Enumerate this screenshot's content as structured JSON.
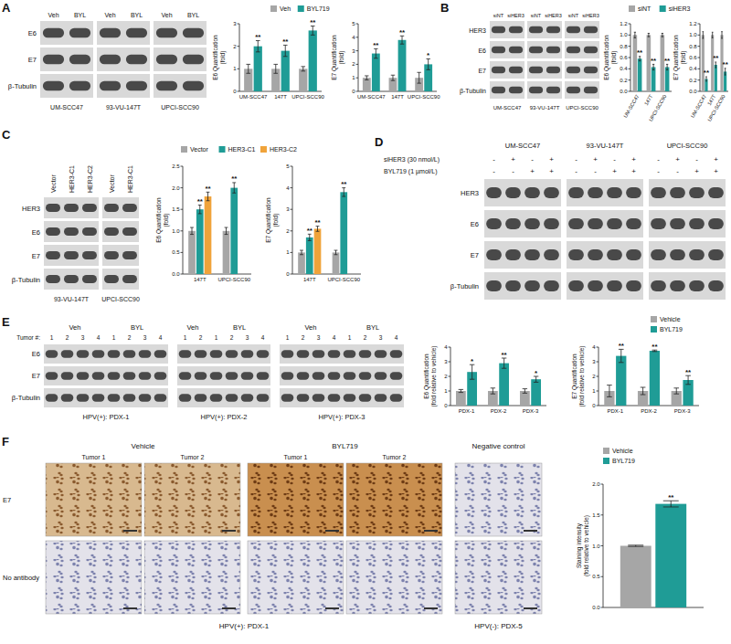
{
  "chart_data": [
    {
      "type": "bar",
      "ylabel": "E6 Quantification (fold)",
      "categories": [
        "UM-SCC47",
        "147T",
        "UPCI-SCC90"
      ],
      "series": [
        {
          "name": "Veh",
          "color": "#a6a6a6",
          "values": [
            1,
            1,
            1
          ],
          "errors": [
            0.2,
            0.2,
            0.1
          ]
        },
        {
          "name": "BYL719",
          "color": "#1f9c96",
          "values": [
            2.0,
            1.8,
            2.7
          ],
          "errors": [
            0.25,
            0.25,
            0.2
          ],
          "significance": [
            "**",
            "**",
            "**"
          ]
        }
      ],
      "ylim": [
        0,
        3
      ],
      "yticks": [
        0,
        1,
        2,
        3
      ],
      "legend": "top"
    },
    {
      "type": "bar",
      "ylabel": "E7 Quantification (fold)",
      "categories": [
        "UM-SCC47",
        "147T",
        "UPCI-SCC90"
      ],
      "series": [
        {
          "color": "#a6a6a6",
          "values": [
            1,
            1,
            1
          ],
          "errors": [
            0.15,
            0.2,
            0.4
          ]
        },
        {
          "color": "#1f9c96",
          "values": [
            2.8,
            3.8,
            2.0
          ],
          "errors": [
            0.35,
            0.3,
            0.4
          ],
          "significance": [
            "**",
            "**",
            "*"
          ]
        }
      ],
      "ylim": [
        0,
        5
      ],
      "yticks": [
        0,
        1,
        2,
        3,
        4,
        5
      ]
    },
    {
      "type": "bar",
      "ylabel": "E6 Quantification (fold)",
      "categories": [
        "UM-SCC47",
        "147T",
        "UPCI-SCC90"
      ],
      "series": [
        {
          "name": "siNT",
          "color": "#a6a6a6",
          "values": [
            1,
            1,
            1
          ],
          "errors": [
            0.05,
            0.03,
            0.03
          ]
        },
        {
          "name": "siHER3",
          "color": "#1f9c96",
          "values": [
            0.58,
            0.43,
            0.43
          ],
          "errors": [
            0.04,
            0.05,
            0.05
          ],
          "significance": [
            "**",
            "**",
            "**"
          ]
        }
      ],
      "ylim": [
        0,
        1.2
      ],
      "yticks": [
        {
          "value": 0,
          "label": "0.0"
        },
        0.2,
        0.4,
        0.6,
        0.8,
        {
          "value": 1,
          "label": "1.0"
        },
        1.2
      ],
      "legend": "top"
    },
    {
      "type": "bar",
      "ylabel": "E7 Quantification (fold)",
      "categories": [
        "UM-SCC47",
        "147T",
        "UPCI-SCC90"
      ],
      "series": [
        {
          "color": "#a6a6a6",
          "values": [
            1,
            1,
            1
          ],
          "errors": [
            0.06,
            0.05,
            0.06
          ]
        },
        {
          "color": "#1f9c96",
          "values": [
            0.22,
            0.47,
            0.35
          ],
          "errors": [
            0.04,
            0.05,
            0.06
          ],
          "significance": [
            "**",
            "**",
            "**"
          ]
        }
      ],
      "ylim": [
        0,
        1.2
      ],
      "yticks": [
        {
          "value": 0,
          "label": "0.0"
        },
        0.2,
        0.4,
        0.6,
        0.8,
        {
          "value": 1,
          "label": "1.0"
        },
        1.2
      ]
    },
    {
      "type": "bar",
      "ylabel": "E6 Quantification (fold)",
      "categories": [
        "147T",
        "UPCI-SCC90"
      ],
      "series": [
        {
          "name": "Vector",
          "color": "#a6a6a6",
          "values": [
            1,
            1
          ],
          "errors": [
            0.08,
            0.08
          ]
        },
        {
          "name": "HER3-C1",
          "color": "#1f9c96",
          "values": [
            1.5,
            2.0
          ],
          "errors": [
            0.1,
            0.12
          ],
          "significance": [
            "**",
            "**"
          ]
        },
        {
          "name": "HER3-C2",
          "color": "#f0a33a",
          "values": [
            1.8,
            null
          ],
          "errors": [
            0.1,
            null
          ],
          "significance": [
            "**",
            null
          ]
        }
      ],
      "ylim": [
        0,
        2.5
      ],
      "yticks": [
        {
          "value": 0,
          "label": "0.0"
        },
        0.5,
        {
          "value": 1,
          "label": "1.0"
        },
        1.5,
        {
          "value": 2,
          "label": "2.0"
        },
        2.5
      ],
      "legend": "top"
    },
    {
      "type": "bar",
      "ylabel": "E7 Quantification (fold)",
      "categories": [
        "147T",
        "UPCI-SCC90"
      ],
      "series": [
        {
          "color": "#a6a6a6",
          "values": [
            1,
            1
          ],
          "errors": [
            0.1,
            0.1
          ]
        },
        {
          "color": "#1f9c96",
          "values": [
            1.7,
            3.8
          ],
          "errors": [
            0.15,
            0.2
          ],
          "significance": [
            "**",
            "**"
          ]
        },
        {
          "color": "#f0a33a",
          "values": [
            2.1,
            null
          ],
          "errors": [
            0.12,
            null
          ],
          "significance": [
            "**",
            null
          ]
        }
      ],
      "ylim": [
        0,
        5
      ],
      "yticks": [
        0,
        1,
        2,
        3,
        4,
        5
      ]
    },
    {
      "type": "bar",
      "ylabel": "E6 Quantification (fold relative to vehicle)",
      "categories": [
        "PDX-1",
        "PDX-2",
        "PDX-3"
      ],
      "series": [
        {
          "color": "#a6a6a6",
          "values": [
            1,
            1,
            1
          ],
          "errors": [
            0.1,
            0.2,
            0.15
          ]
        },
        {
          "color": "#1f9c96",
          "values": [
            2.3,
            2.9,
            1.8
          ],
          "errors": [
            0.5,
            0.35,
            0.2
          ],
          "significance": [
            "*",
            "**",
            "*"
          ]
        }
      ],
      "ylim": [
        0,
        4
      ],
      "yticks": [
        0,
        1,
        2,
        3,
        4
      ]
    },
    {
      "type": "bar",
      "ylabel": "E7 Quantification (fold relative to vehicle)",
      "categories": [
        "PDX-1",
        "PDX-2",
        "PDX-3"
      ],
      "series": [
        {
          "name": "Vehicle",
          "color": "#a6a6a6",
          "values": [
            1,
            1,
            1
          ],
          "errors": [
            0.4,
            0.25,
            0.2
          ]
        },
        {
          "name": "BYL719",
          "color": "#1f9c96",
          "values": [
            3.4,
            3.75,
            1.75
          ],
          "errors": [
            0.45,
            0.05,
            0.3
          ],
          "significance": [
            "**",
            "**",
            "**"
          ]
        }
      ],
      "ylim": [
        0,
        4
      ],
      "yticks": [
        0,
        1,
        2,
        3,
        4
      ],
      "legend": "top right"
    },
    {
      "type": "bar",
      "ylabel": "Staining intensity (fold relative to vehicle)",
      "categories": [
        null
      ],
      "series": [
        {
          "name": "Vehicle",
          "color": "#a6a6a6",
          "values": [
            1.0
          ],
          "errors": [
            0.01
          ]
        },
        {
          "name": "BYL719",
          "color": "#1f9c96",
          "values": [
            1.68
          ],
          "errors": [
            0.05
          ],
          "significance": [
            "**"
          ]
        }
      ],
      "ylim": [
        0,
        2
      ],
      "yticks": [
        {
          "value": 0,
          "label": "0.0"
        },
        0.5,
        {
          "value": 1,
          "label": "1.0"
        },
        1.5,
        {
          "value": 2,
          "label": "2.0"
        }
      ],
      "legend": "top right"
    }
  ],
  "blots": [
    {
      "panel": "A",
      "rows": [
        "E6",
        "E7",
        "β-Tubulin"
      ],
      "groups": [
        {
          "label": "UM-SCC47",
          "lanes": [
            "Veh",
            "BYL"
          ]
        },
        {
          "label": "93-VU-147T",
          "lanes": [
            "Veh",
            "BYL"
          ]
        },
        {
          "label": "UPCI-SCC90",
          "lanes": [
            "Veh",
            "BYL"
          ]
        }
      ]
    },
    {
      "panel": "B",
      "rows": [
        "HER3",
        "E6",
        "E7",
        "β-Tubulin"
      ],
      "groups": [
        {
          "label": "UM-SCC47",
          "lanes": [
            "siNT",
            "siHER3"
          ]
        },
        {
          "label": "93-VU-147T",
          "lanes": [
            "siNT",
            "siHER3"
          ]
        },
        {
          "label": "UPCI-SCC90",
          "lanes": [
            "siNT",
            "siHER3"
          ]
        }
      ]
    },
    {
      "panel": "C",
      "rows": [
        "HER3",
        "E6",
        "E7",
        "β-Tubulin"
      ],
      "groups": [
        {
          "label": "93-VU-147T",
          "lanes": [
            "Vector",
            "HER3-C1",
            "HER3-C2"
          ]
        },
        {
          "label": "UPCI-SCC90",
          "lanes": [
            "Vector",
            "HER3-C1"
          ]
        }
      ]
    },
    {
      "panel": "D",
      "rows": [
        "HER3",
        "E6",
        "E7",
        "β-Tubulin"
      ],
      "conditions": [
        {
          "label": "siHER3 (30 nmol/L)",
          "signs": [
            "-",
            "+",
            "-",
            "+"
          ]
        },
        {
          "label": "BYL719 (1 µmol/L)",
          "signs": [
            "-",
            "-",
            "+",
            "+"
          ]
        }
      ],
      "groups": [
        {
          "label": "UM-SCC47"
        },
        {
          "label": "93-VU-147T"
        },
        {
          "label": "UPCI-SCC90"
        }
      ]
    },
    {
      "panel": "E",
      "rows": [
        "E6",
        "E7",
        "β-Tubulin"
      ],
      "lane_header": "Tumor #:",
      "groups": [
        {
          "label": "HPV(+): PDX-1",
          "arms": [
            {
              "label": "Veh",
              "lanes": [
                "1",
                "2",
                "3",
                "4"
              ]
            },
            {
              "label": "BYL",
              "lanes": [
                "1",
                "2",
                "3",
                "4"
              ]
            }
          ]
        },
        {
          "label": "HPV(+): PDX-2",
          "arms": [
            {
              "label": "Veh",
              "lanes": [
                "1",
                "2"
              ]
            },
            {
              "label": "BYL",
              "lanes": [
                "1",
                "2",
                "3",
                "4"
              ]
            }
          ]
        },
        {
          "label": "HPV(+): PDX-3",
          "arms": [
            {
              "label": "Veh",
              "lanes": [
                "1",
                "2",
                "3",
                "4"
              ]
            },
            {
              "label": "BYL",
              "lanes": [
                "1",
                "2",
                "3",
                "4"
              ]
            }
          ]
        }
      ]
    }
  ],
  "ihc": {
    "panel": "F",
    "rows": [
      "E7",
      "No antibody"
    ],
    "groups": [
      {
        "label": "HPV(+): PDX-1",
        "columns": [
          {
            "header": "Vehicle",
            "tumors": [
              "Tumor 1",
              "Tumor 2"
            ]
          },
          {
            "header": "BYL719",
            "tumors": [
              "Tumor 1",
              "Tumor 2"
            ]
          }
        ]
      },
      {
        "label": "HPV(-): PDX-5",
        "columns": [
          {
            "header": "Negative control",
            "tumors": []
          }
        ]
      }
    ]
  }
}
